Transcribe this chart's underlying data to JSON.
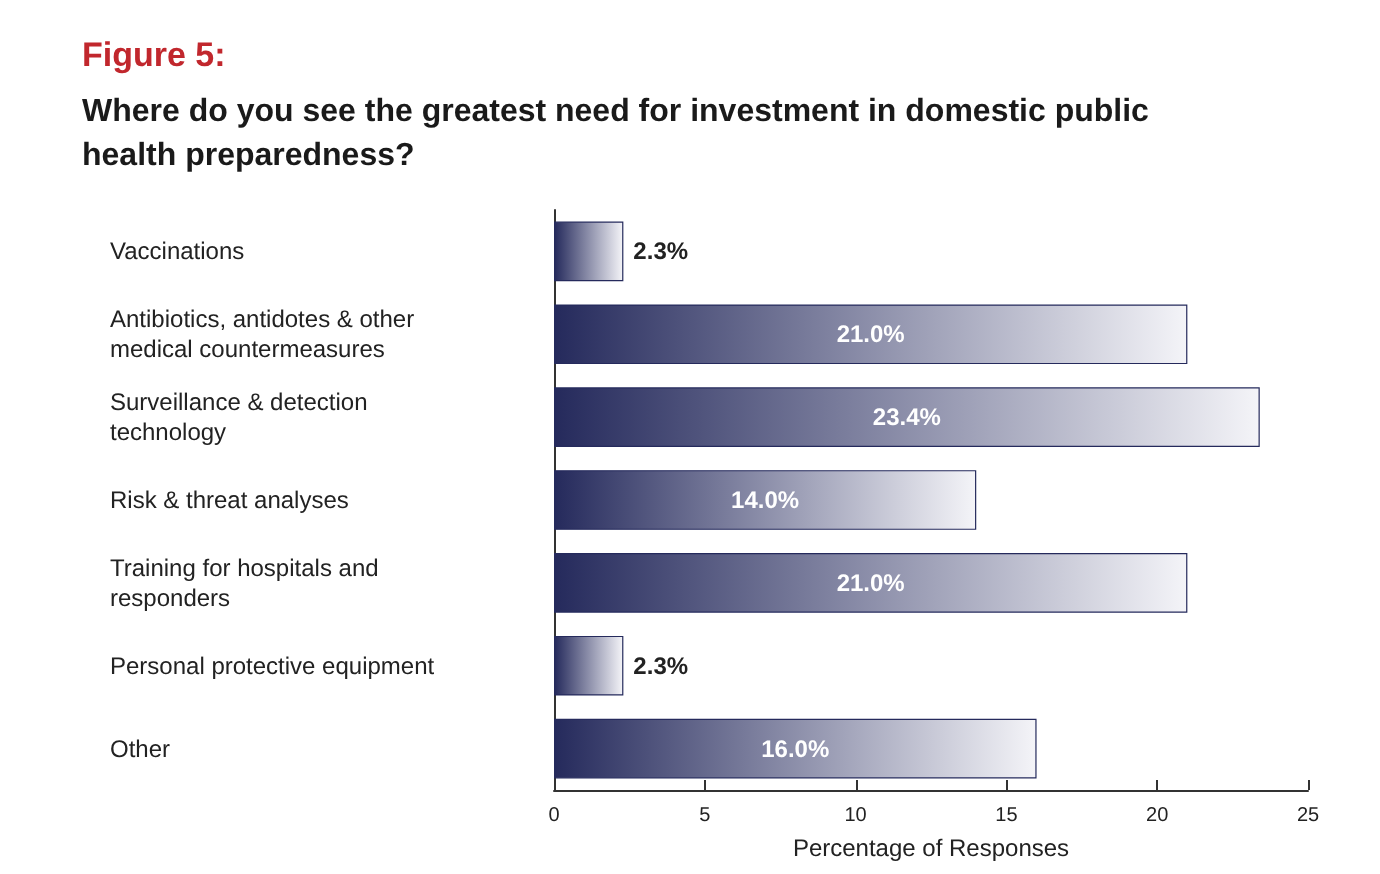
{
  "chart_data": {
    "type": "bar",
    "orientation": "horizontal",
    "title": "Figure 5:",
    "subtitle": "Where do you see the greatest need for investment in domestic public health preparedness?",
    "categories": [
      "Vaccinations",
      "Antibiotics, antidotes & other medical countermeasures",
      "Surveillance & detection technology",
      "Risk & threat analyses",
      "Training for hospitals and responders",
      "Personal protective equipment",
      "Other"
    ],
    "values": [
      2.3,
      21.0,
      23.4,
      14.0,
      21.0,
      2.3,
      16.0
    ],
    "value_labels": [
      "2.3%",
      "21.0%",
      "23.4%",
      "14.0%",
      "21.0%",
      "2.3%",
      "16.0%"
    ],
    "color": "#252a5c",
    "xlim": [
      0,
      25
    ],
    "xticks": [
      0,
      5,
      10,
      15,
      20,
      25
    ],
    "xlabel": "Percentage of Responses",
    "grid": false
  }
}
